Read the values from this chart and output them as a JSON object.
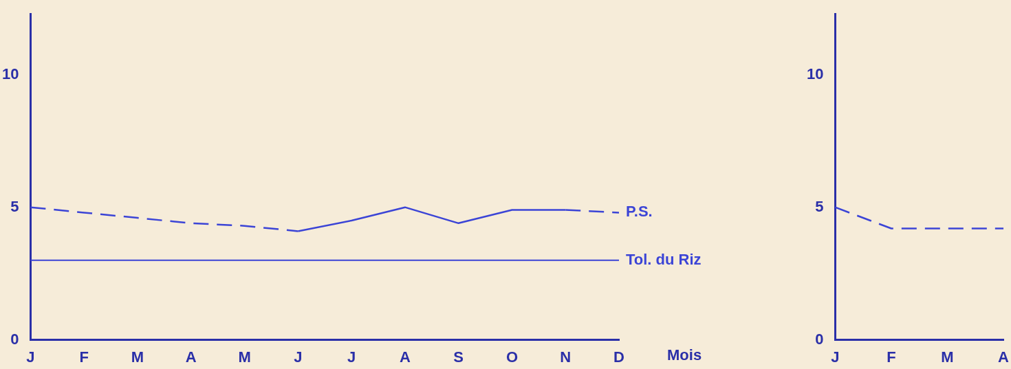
{
  "chart_data": [
    {
      "type": "line",
      "xlabel": "Mois",
      "categories": [
        "J",
        "F",
        "M",
        "A",
        "M",
        "J",
        "J",
        "A",
        "S",
        "O",
        "N",
        "D"
      ],
      "series": [
        {
          "color": "#3b44d6",
          "line_style": "solid",
          "values": [
            null,
            null,
            null,
            null,
            null,
            4.1,
            4.5,
            5.0,
            4.4,
            4.9,
            4.9,
            null
          ]
        },
        {
          "name": "P.S.",
          "color": "#3b44d6",
          "line_style": "dashed",
          "values": [
            5.0,
            4.8,
            4.6,
            4.4,
            4.3,
            4.1,
            null,
            null,
            null,
            null,
            4.9,
            4.8
          ]
        }
      ],
      "ylim": [
        0,
        12.3
      ],
      "yticks": [
        0,
        5,
        10
      ],
      "marker": "none",
      "grid": false,
      "legend": false,
      "ref_lines": [
        {
          "axis": "y",
          "value": 3,
          "label": "Tol. du Riz",
          "color": "#3b44d6"
        }
      ]
    },
    {
      "type": "line",
      "categories": [
        "J",
        "F",
        "M",
        "A"
      ],
      "series": [
        {
          "color": "#3b44d6",
          "line_style": "dashed",
          "values": [
            5.0,
            4.2,
            4.2,
            4.2
          ]
        }
      ],
      "ylim": [
        0,
        12.3
      ],
      "yticks": [
        0,
        5,
        10
      ],
      "marker": "none",
      "grid": false,
      "legend": false
    }
  ]
}
